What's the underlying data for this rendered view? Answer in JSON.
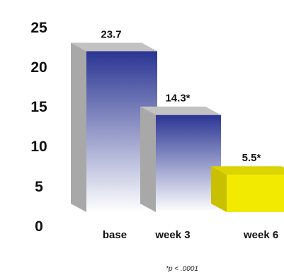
{
  "chart_data": {
    "type": "bar",
    "categories": [
      "base",
      "week 3",
      "week 6"
    ],
    "values": [
      23.7,
      14.3,
      5.5
    ],
    "data_labels": [
      "23.7",
      "14.3*",
      "5.5*"
    ],
    "yticks": [
      "0",
      "5",
      "10",
      "15",
      "20",
      "25"
    ],
    "ylim": [
      0,
      25
    ],
    "grid": false,
    "legend": "none",
    "footnote": "*p < .0001",
    "colors": {
      "blue_top": "#2a3593",
      "blue_bottom": "#ffffff",
      "side_gray": "#a8a8a8",
      "top_gray": "#c2c2c2",
      "yellow_front": "#f2ea00",
      "yellow_side": "#c8c000",
      "yellow_top": "#dcd400"
    }
  }
}
